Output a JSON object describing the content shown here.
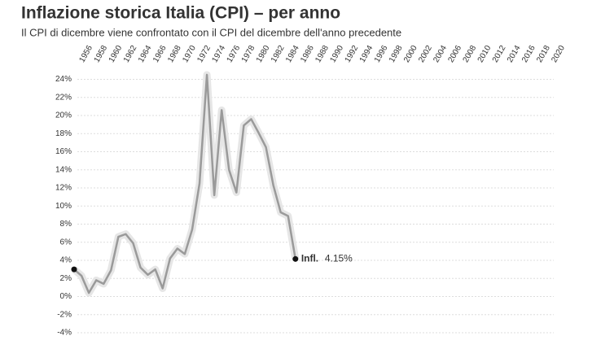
{
  "chart_data": {
    "type": "line",
    "title": "Inflazione storica Italia (CPI) – per anno",
    "subtitle": "Il CPI di dicembre viene confrontato con il CPI del dicembre dell'anno precedente",
    "x": [
      1955,
      1956,
      1957,
      1958,
      1959,
      1960,
      1961,
      1962,
      1963,
      1964,
      1965,
      1966,
      1967,
      1968,
      1969,
      1970,
      1971,
      1972,
      1973,
      1974,
      1975,
      1976,
      1977,
      1978,
      1979,
      1980,
      1981,
      1982,
      1983,
      1984,
      1985
    ],
    "series": [
      {
        "name": "Infl.",
        "color": "#9a9a9a",
        "values": [
          3.0,
          2.3,
          0.4,
          1.8,
          1.4,
          2.9,
          6.6,
          6.9,
          5.9,
          3.2,
          2.4,
          3.0,
          0.9,
          4.2,
          5.3,
          4.7,
          7.4,
          12.5,
          24.5,
          11.2,
          20.6,
          14.0,
          11.5,
          18.9,
          19.6,
          18.1,
          16.5,
          12.3,
          9.3,
          8.9,
          4.15
        ],
        "value_labels": [
          null,
          null,
          null,
          null,
          null,
          null,
          null,
          null,
          null,
          null,
          null,
          null,
          null,
          null,
          null,
          null,
          null,
          null,
          null,
          null,
          null,
          null,
          null,
          null,
          null,
          null,
          null,
          null,
          null,
          null,
          "4.15%"
        ]
      }
    ],
    "xlim": [
      1955,
      2021
    ],
    "xticks": [
      1956,
      1958,
      1960,
      1962,
      1964,
      1966,
      1968,
      1970,
      1972,
      1974,
      1976,
      1978,
      1980,
      1982,
      1984,
      1986,
      1988,
      1990,
      1992,
      1994,
      1996,
      1998,
      2000,
      2002,
      2004,
      2006,
      2008,
      2010,
      2012,
      2014,
      2016,
      2018,
      2020
    ],
    "ylim": [
      -4,
      24
    ],
    "yticks": [
      {
        "value": -4,
        "label": "-4%"
      },
      {
        "value": -2,
        "label": "-2%"
      },
      {
        "value": 0,
        "label": "0%"
      },
      {
        "value": 2,
        "label": "2%"
      },
      {
        "value": 4,
        "label": "4%"
      },
      {
        "value": 6,
        "label": "6%"
      },
      {
        "value": 8,
        "label": "8%"
      },
      {
        "value": 10,
        "label": "10%"
      },
      {
        "value": 12,
        "label": "12%"
      },
      {
        "value": 14,
        "label": "14%"
      },
      {
        "value": 16,
        "label": "16%"
      },
      {
        "value": 18,
        "label": "18%"
      },
      {
        "value": 20,
        "label": "20%"
      },
      {
        "value": 22,
        "label": "22%"
      },
      {
        "value": 24,
        "label": "24%"
      }
    ],
    "grid": true
  }
}
